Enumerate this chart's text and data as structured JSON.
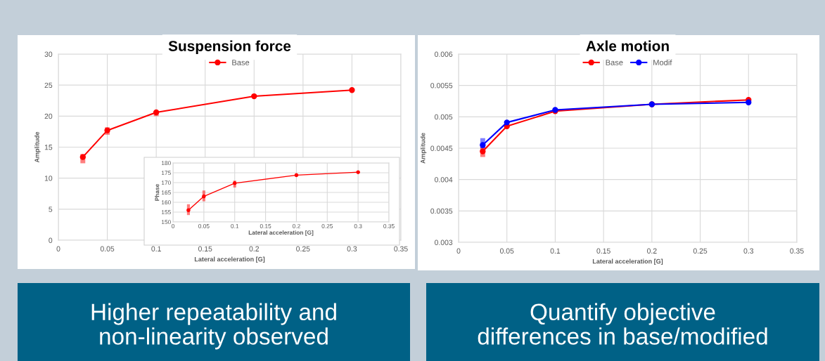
{
  "chart_data": [
    {
      "type": "line",
      "title": "Suspension force",
      "xlabel": "Lateral acceleration [G]",
      "ylabel": "Amplitude",
      "x": [
        0.025,
        0.05,
        0.1,
        0.2,
        0.3
      ],
      "series": [
        {
          "name": "Base",
          "color": "#ff0000",
          "values": [
            13.4,
            17.7,
            20.6,
            23.2,
            24.2
          ],
          "errors": [
            [
              12.4,
              13.9
            ],
            [
              17.0,
              18.2
            ],
            [
              20.0,
              20.8
            ],
            null,
            [
              24.0,
              24.4
            ]
          ]
        }
      ],
      "xlim": [
        0,
        0.35
      ],
      "xticks": [
        0,
        0.05,
        0.1,
        0.15,
        0.2,
        0.25,
        0.3,
        0.35
      ],
      "ylim": [
        0,
        30
      ],
      "yticks": [
        0,
        5,
        10,
        15,
        20,
        25,
        30
      ],
      "grid": true,
      "legend": "top",
      "marker": "circle",
      "line_style": "solid",
      "annotations": [
        "Higher repeatability and\nnon-linearity observed"
      ]
    },
    {
      "type": "line",
      "title": "Axle motion",
      "xlabel": "Lateral acceleration [G]",
      "ylabel": "Amplitude",
      "x": [
        0.025,
        0.05,
        0.1,
        0.2,
        0.3
      ],
      "series": [
        {
          "name": "Base",
          "color": "#ff0000",
          "values": [
            0.00445,
            0.00485,
            0.00509,
            0.0052,
            0.00527
          ],
          "errors": [
            [
              0.00436,
              0.00455
            ],
            null,
            null,
            null,
            null
          ]
        },
        {
          "name": "Modif",
          "color": "#0000ff",
          "values": [
            0.00455,
            0.00491,
            0.00511,
            0.0052,
            0.00523
          ],
          "errors": [
            [
              0.0045,
              0.00466
            ],
            null,
            null,
            null,
            null
          ]
        }
      ],
      "xlim": [
        0,
        0.35
      ],
      "xticks": [
        0,
        0.05,
        0.1,
        0.15,
        0.2,
        0.25,
        0.3,
        0.35
      ],
      "ylim": [
        0.003,
        0.006
      ],
      "yticks": [
        0.003,
        0.0035,
        0.004,
        0.0045,
        0.005,
        0.0055,
        0.006
      ],
      "grid": true,
      "legend": "top",
      "marker": "circle",
      "line_style": "solid",
      "annotations": [
        "Quantify objective\ndifferences in base/modified"
      ]
    },
    {
      "type": "line",
      "xlabel": "Lateral acceleration [G]",
      "ylabel": "Phase",
      "x": [
        0.025,
        0.05,
        0.1,
        0.2,
        0.3
      ],
      "series": [
        {
          "color": "#ff0000",
          "values": [
            156,
            163,
            169.7,
            173.8,
            175.3
          ],
          "errors": [
            [
              153.5,
              159
            ],
            [
              160.5,
              166
            ],
            [
              167.5,
              171
            ],
            [
              173,
              174.5
            ],
            null
          ]
        }
      ],
      "xlim": [
        0,
        0.35
      ],
      "xticks": [
        0,
        0.05,
        0.1,
        0.15,
        0.2,
        0.25,
        0.3,
        0.35
      ],
      "ylim": [
        150,
        180
      ],
      "yticks": [
        150,
        155,
        160,
        165,
        170,
        175,
        180
      ],
      "grid": true,
      "marker": "circle",
      "line_style": "solid"
    }
  ]
}
